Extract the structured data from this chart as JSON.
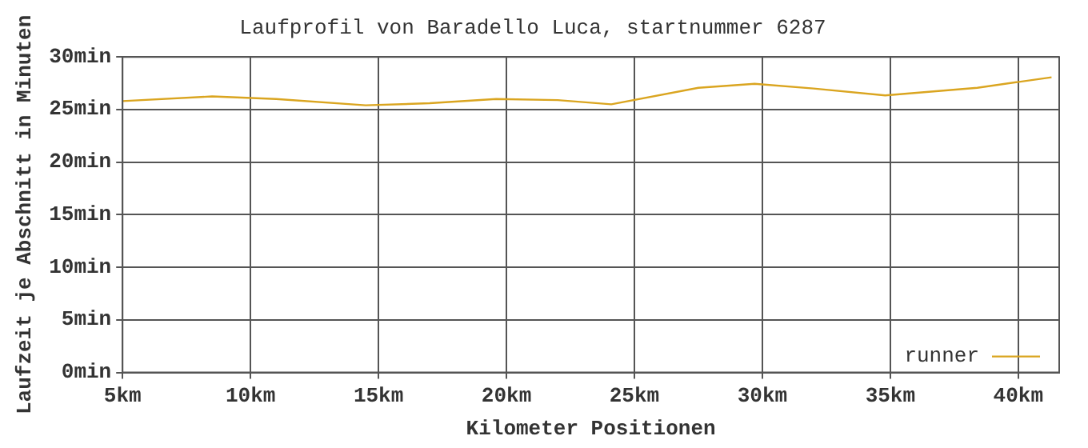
{
  "chart_data": {
    "type": "line",
    "title": "Laufprofil von Baradello Luca, startnummer 6287",
    "xlabel": "Kilometer Positionen",
    "ylabel": "Laufzeit je Abschnitt in Minuten",
    "x": [
      5,
      8.5,
      11,
      14.5,
      17,
      19.6,
      22,
      24.1,
      27.5,
      29.7,
      32,
      34.8,
      38.4,
      41.3
    ],
    "series": [
      {
        "name": "runner",
        "color": "#daa520",
        "values": [
          25.8,
          26.25,
          26.0,
          25.4,
          25.6,
          26.0,
          25.9,
          25.5,
          27.07,
          27.45,
          27.0,
          26.35,
          27.07,
          28.07
        ]
      }
    ],
    "xlim": [
      5,
      41.6
    ],
    "xticks": [
      {
        "value": 5,
        "label": "5km"
      },
      {
        "value": 10,
        "label": "10km"
      },
      {
        "value": 15,
        "label": "15km"
      },
      {
        "value": 20,
        "label": "20km"
      },
      {
        "value": 25,
        "label": "25km"
      },
      {
        "value": 30,
        "label": "30km"
      },
      {
        "value": 35,
        "label": "35km"
      },
      {
        "value": 40,
        "label": "40km"
      }
    ],
    "ylim": [
      0,
      30
    ],
    "yticks": [
      {
        "value": 0,
        "label": "0min"
      },
      {
        "value": 5,
        "label": "5min"
      },
      {
        "value": 10,
        "label": "10min"
      },
      {
        "value": 15,
        "label": "15min"
      },
      {
        "value": 20,
        "label": "20min"
      },
      {
        "value": 25,
        "label": "25min"
      },
      {
        "value": 30,
        "label": "30min"
      }
    ],
    "grid": true,
    "legend": "bottom right",
    "marker": "none",
    "line_style": "solid"
  }
}
